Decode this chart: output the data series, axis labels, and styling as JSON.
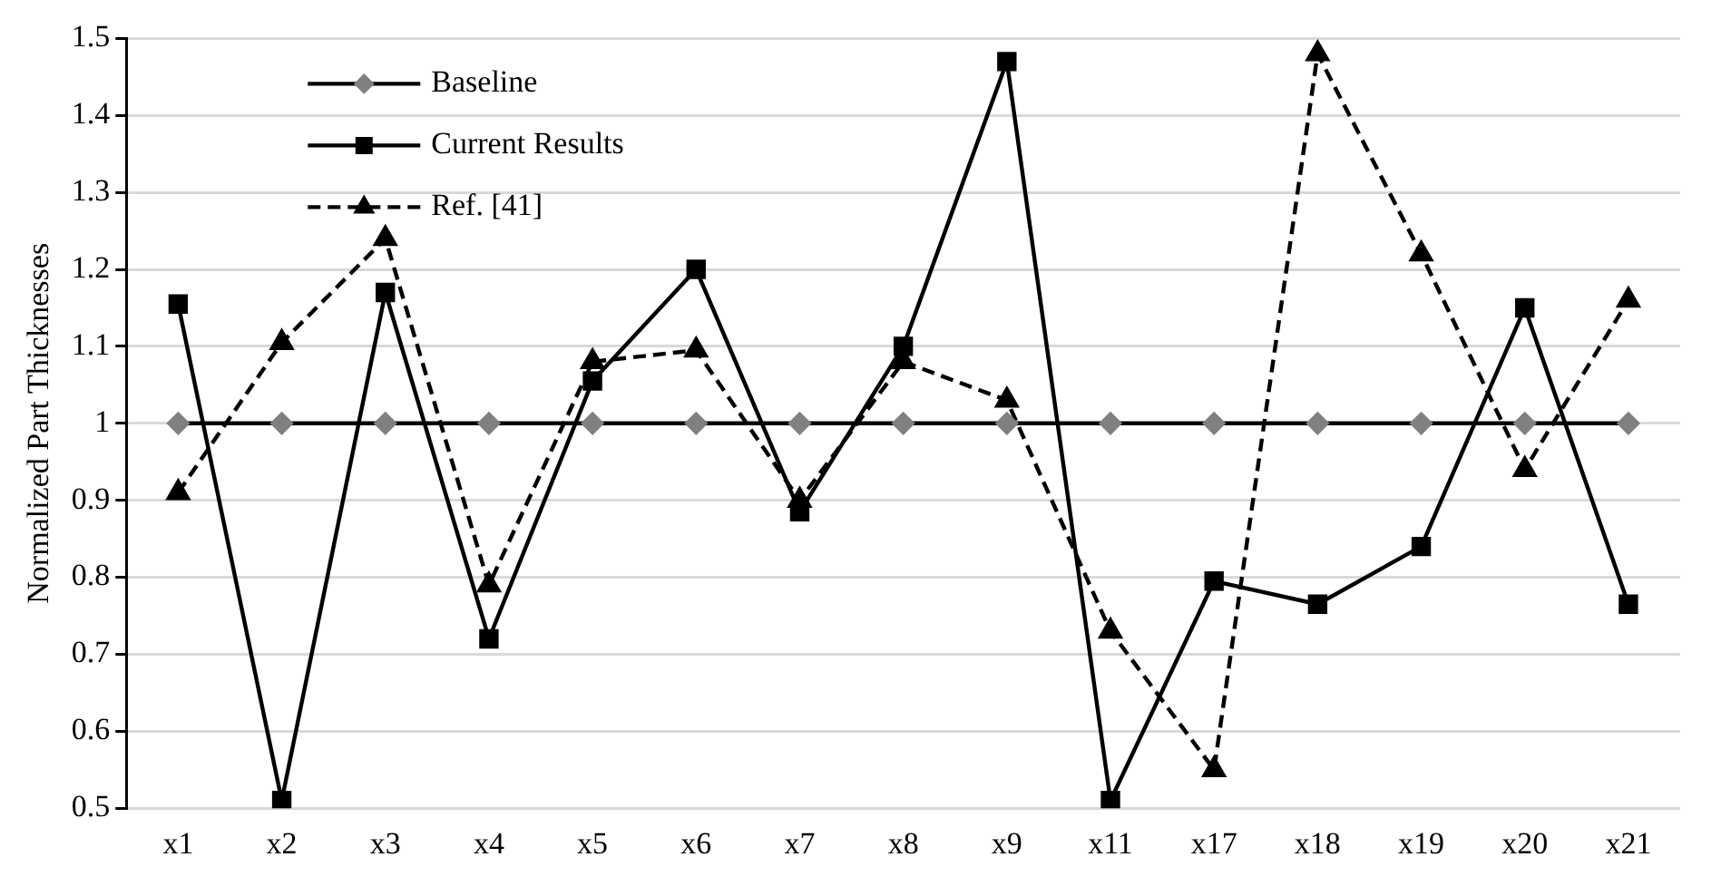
{
  "chart_data": {
    "type": "line",
    "ylabel": "Normalized Part Thicknesses",
    "categories": [
      "x1",
      "x2",
      "x3",
      "x4",
      "x5",
      "x6",
      "x7",
      "x8",
      "x9",
      "x11",
      "x17",
      "x18",
      "x19",
      "x20",
      "x21"
    ],
    "ylim": [
      0.5,
      1.5
    ],
    "yticks": [
      0.5,
      0.6,
      0.7,
      0.8,
      0.9,
      1,
      1.1,
      1.2,
      1.3,
      1.4,
      1.5
    ],
    "grid": "y",
    "legend": "top left",
    "series": [
      {
        "name": "Baseline",
        "color": "#000000",
        "colors": [
          "#808080",
          "#808080",
          "#808080",
          "#808080",
          "#808080",
          "#808080",
          "#808080",
          "#808080",
          "#808080",
          "#808080",
          "#808080",
          "#808080",
          "#808080",
          "#808080",
          "#808080"
        ],
        "marker": "diamond",
        "line_style": "solid",
        "values": [
          1,
          1,
          1,
          1,
          1,
          1,
          1,
          1,
          1,
          1,
          1,
          1,
          1,
          1,
          1
        ]
      },
      {
        "name": "Current Results",
        "color": "#000000",
        "marker": "square",
        "line_style": "solid",
        "values": [
          1.155,
          0.51,
          1.17,
          0.72,
          1.055,
          1.2,
          0.885,
          1.1,
          1.47,
          0.51,
          0.795,
          0.765,
          0.84,
          1.15,
          0.765
        ]
      },
      {
        "name": "Ref. [41]",
        "color": "#000000",
        "marker": "triangle",
        "line_style": "dashed",
        "values": [
          0.91,
          1.105,
          1.24,
          0.79,
          1.08,
          1.095,
          0.9,
          1.08,
          1.03,
          0.73,
          0.55,
          1.48,
          1.22,
          0.94,
          1.16
        ]
      }
    ]
  }
}
